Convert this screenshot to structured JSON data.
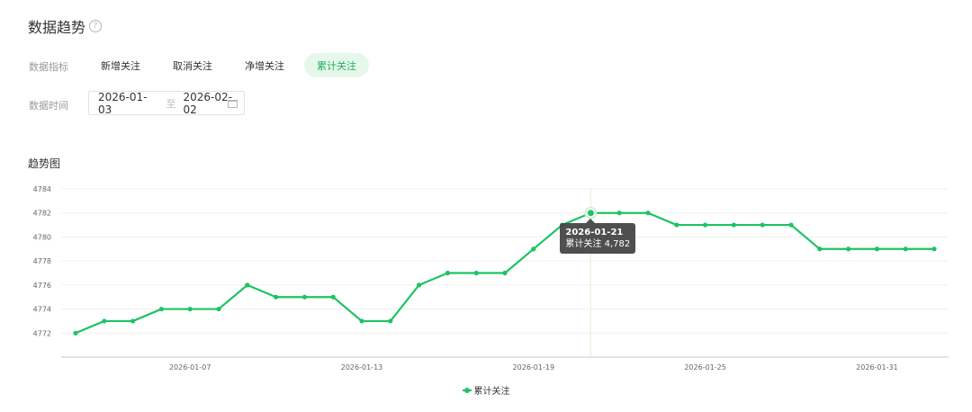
{
  "header": {
    "title": "数据趋势",
    "help_icon": "help-circle-icon"
  },
  "filters": {
    "metric_label": "数据指标",
    "metrics": [
      "新增关注",
      "取消关注",
      "净增关注",
      "累计关注"
    ],
    "active_metric": "累计关注",
    "time_label": "数据时间",
    "start_date": "2026-01-03",
    "range_separator": "至",
    "end_date": "2026-02-02",
    "calendar_icon": "calendar-icon"
  },
  "chart_section": {
    "title": "趋势图"
  },
  "colors": {
    "accent": "#1ec364",
    "accent_bg": "#e6f8ec",
    "grid": "#f0f0f0",
    "axis": "#c8c8c8"
  },
  "tooltip": {
    "date": "2026-01-21",
    "series_name": "累计关注",
    "value_text": "4,782"
  },
  "chart_data": {
    "type": "line",
    "title": "趋势图",
    "xlabel": "",
    "ylabel": "",
    "x": [
      "2026-01-03",
      "2026-01-04",
      "2026-01-05",
      "2026-01-06",
      "2026-01-07",
      "2026-01-08",
      "2026-01-09",
      "2026-01-10",
      "2026-01-11",
      "2026-01-12",
      "2026-01-13",
      "2026-01-14",
      "2026-01-15",
      "2026-01-16",
      "2026-01-17",
      "2026-01-18",
      "2026-01-19",
      "2026-01-20",
      "2026-01-21",
      "2026-01-22",
      "2026-01-23",
      "2026-01-24",
      "2026-01-25",
      "2026-01-26",
      "2026-01-27",
      "2026-01-28",
      "2026-01-29",
      "2026-01-30",
      "2026-01-31",
      "2026-02-01",
      "2026-02-02"
    ],
    "x_tick_labels": [
      "2026-01-07",
      "2026-01-13",
      "2026-01-19",
      "2026-01-25",
      "2026-01-31"
    ],
    "y_tick_labels": [
      4772,
      4774,
      4776,
      4778,
      4780,
      4782,
      4784
    ],
    "ylim": [
      4770,
      4784
    ],
    "grid": true,
    "legend_position": "bottom-center",
    "series": [
      {
        "name": "累计关注",
        "values": [
          4772,
          4773,
          4773,
          4774,
          4774,
          4774,
          4776,
          4775,
          4775,
          4775,
          4773,
          4773,
          4776,
          4777,
          4777,
          4777,
          4779,
          4781,
          4782,
          4782,
          4782,
          4781,
          4781,
          4781,
          4781,
          4781,
          4779,
          4779,
          4779,
          4779,
          4779
        ]
      }
    ],
    "highlight_index": 18
  }
}
